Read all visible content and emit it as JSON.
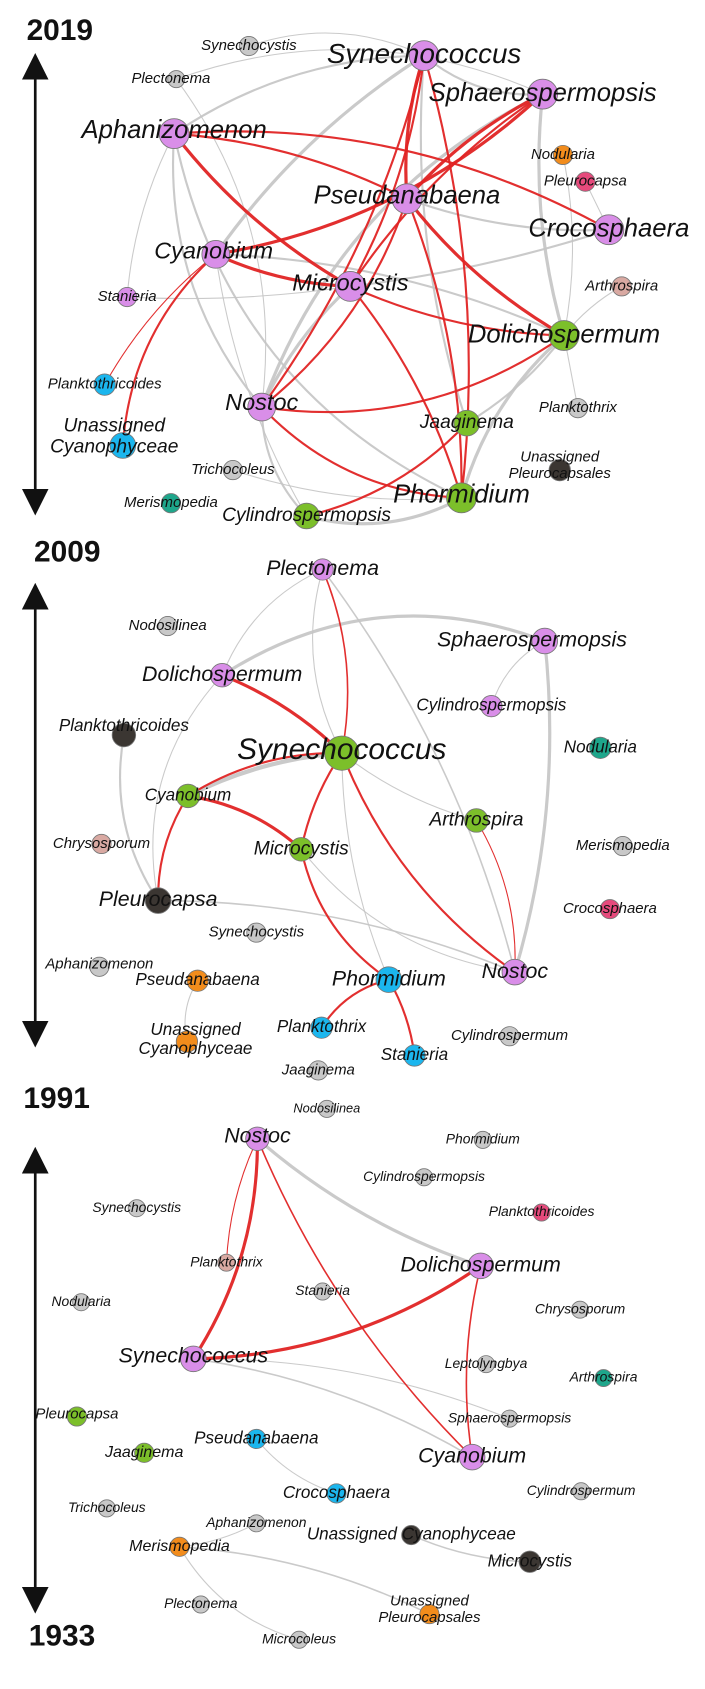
{
  "years": [
    "2019",
    "2009",
    "1991",
    "1933"
  ],
  "panels": [
    {
      "nodes": [
        {
          "label": "Synechococcus",
          "color": "#d98ee8"
        },
        {
          "label": "Sphaerospermopsis",
          "color": "#d98ee8"
        },
        {
          "label": "Synechocystis",
          "color": "#c8c8c8"
        },
        {
          "label": "Plectonema",
          "color": "#c8c8c8"
        },
        {
          "label": "Aphanizomenon",
          "color": "#d98ee8"
        },
        {
          "label": "Nodularia",
          "color": "#f28c1c"
        },
        {
          "label": "Pleurocapsa",
          "color": "#e64a7c"
        },
        {
          "label": "Pseudanabaena",
          "color": "#d98ee8"
        },
        {
          "label": "Crocosphaera",
          "color": "#d98ee8"
        },
        {
          "label": "Cyanobium",
          "color": "#d98ee8"
        },
        {
          "label": "Arthrospira",
          "color": "#d9a9a2"
        },
        {
          "label": "Stanieria",
          "color": "#d98ee8"
        },
        {
          "label": "Microcystis",
          "color": "#d98ee8"
        },
        {
          "label": "Dolichospermum",
          "color": "#7cbf2a"
        },
        {
          "label": "Planktothricoides",
          "color": "#1bb6ee"
        },
        {
          "label": "Nostoc",
          "color": "#d98ee8"
        },
        {
          "label": "Planktothrix",
          "color": "#c8c8c8"
        },
        {
          "label": "Jaaginema",
          "color": "#7cbf2a"
        },
        {
          "label": [
            "Unassigned",
            "Cyanophyceae"
          ],
          "color": "#1bb6ee"
        },
        {
          "label": [
            "Unassigned",
            "Pleurocapsales"
          ],
          "color": "#3b3632"
        },
        {
          "label": "Trichocoleus",
          "color": "#c8c8c8"
        },
        {
          "label": "Merismopedia",
          "color": "#1ea68b"
        },
        {
          "label": "Cylindrospermopsis",
          "color": "#7cbf2a"
        },
        {
          "label": "Phormidium",
          "color": "#7cbf2a"
        }
      ]
    },
    {
      "nodes": [
        {
          "label": "Plectonema",
          "color": "#d98ee8"
        },
        {
          "label": "Nodosilinea",
          "color": "#c8c8c8"
        },
        {
          "label": "Sphaerospermopsis",
          "color": "#d98ee8"
        },
        {
          "label": "Dolichospermum",
          "color": "#d98ee8"
        },
        {
          "label": "Cylindrospermopsis",
          "color": "#d98ee8"
        },
        {
          "label": "Planktothricoides",
          "color": "#3b3632"
        },
        {
          "label": "Nodularia",
          "color": "#1ea68b"
        },
        {
          "label": "Synechococcus",
          "color": "#7cbf2a"
        },
        {
          "label": "Cyanobium",
          "color": "#7cbf2a"
        },
        {
          "label": "Arthrospira",
          "color": "#7cbf2a"
        },
        {
          "label": "Chrysosporum",
          "color": "#d9a9a2"
        },
        {
          "label": "Microcystis",
          "color": "#7cbf2a"
        },
        {
          "label": "Merismopedia",
          "color": "#c8c8c8"
        },
        {
          "label": "Pleurocapsa",
          "color": "#3b3632"
        },
        {
          "label": "Crocosphaera",
          "color": "#e64a7c"
        },
        {
          "label": "Synechocystis",
          "color": "#c8c8c8"
        },
        {
          "label": "Aphanizomenon",
          "color": "#c8c8c8"
        },
        {
          "label": "Pseudanabaena",
          "color": "#f28c1c"
        },
        {
          "label": "Phormidium",
          "color": "#1bb6ee"
        },
        {
          "label": "Nostoc",
          "color": "#d98ee8"
        },
        {
          "label": "Planktothrix",
          "color": "#1bb6ee"
        },
        {
          "label": [
            "Unassigned",
            "Cyanophyceae"
          ],
          "color": "#f28c1c"
        },
        {
          "label": "Cylindrospermum",
          "color": "#c8c8c8"
        },
        {
          "label": "Stanieria",
          "color": "#1bb6ee"
        },
        {
          "label": "Jaaginema",
          "color": "#c8c8c8"
        }
      ]
    },
    {
      "nodes": [
        {
          "label": "Nodosilinea",
          "color": "#c8c8c8"
        },
        {
          "label": "Nostoc",
          "color": "#d98ee8"
        },
        {
          "label": "Phormidium",
          "color": "#c8c8c8"
        },
        {
          "label": "Cylindrospermopsis",
          "color": "#c8c8c8"
        },
        {
          "label": "Synechocystis",
          "color": "#c8c8c8"
        },
        {
          "label": "Planktothricoides",
          "color": "#e64a7c"
        },
        {
          "label": "Planktothrix",
          "color": "#d9a9a2"
        },
        {
          "label": "Dolichospermum",
          "color": "#d98ee8"
        },
        {
          "label": "Stanieria",
          "color": "#c8c8c8"
        },
        {
          "label": "Chrysosporum",
          "color": "#c8c8c8"
        },
        {
          "label": "Nodularia",
          "color": "#c8c8c8"
        },
        {
          "label": "Synechococcus",
          "color": "#d98ee8"
        },
        {
          "label": "Leptolyngbya",
          "color": "#c8c8c8"
        },
        {
          "label": "Arthrospira",
          "color": "#1ea68b"
        },
        {
          "label": "Pleurocapsa",
          "color": "#7cbf2a"
        },
        {
          "label": "Pseudanabaena",
          "color": "#1bb6ee"
        },
        {
          "label": "Sphaerospermopsis",
          "color": "#c8c8c8"
        },
        {
          "label": "Jaaginema",
          "color": "#7cbf2a"
        },
        {
          "label": "Cyanobium",
          "color": "#d98ee8"
        },
        {
          "label": "Crocosphaera",
          "color": "#1bb6ee"
        },
        {
          "label": "Cylindrospermum",
          "color": "#c8c8c8"
        },
        {
          "label": "Trichocoleus",
          "color": "#c8c8c8"
        },
        {
          "label": "Aphanizomenon",
          "color": "#c8c8c8"
        },
        {
          "label": "Merismopedia",
          "color": "#f28c1c"
        },
        {
          "label": "Unassigned Cyanophyceae",
          "color": "#3b3632"
        },
        {
          "label": "Microcystis",
          "color": "#3b3632"
        },
        {
          "label": "Plectonema",
          "color": "#c8c8c8"
        },
        {
          "label": [
            "Unassigned",
            "Pleurocapsales"
          ],
          "color": "#f28c1c"
        },
        {
          "label": "Microcoleus",
          "color": "#c8c8c8"
        }
      ]
    }
  ]
}
